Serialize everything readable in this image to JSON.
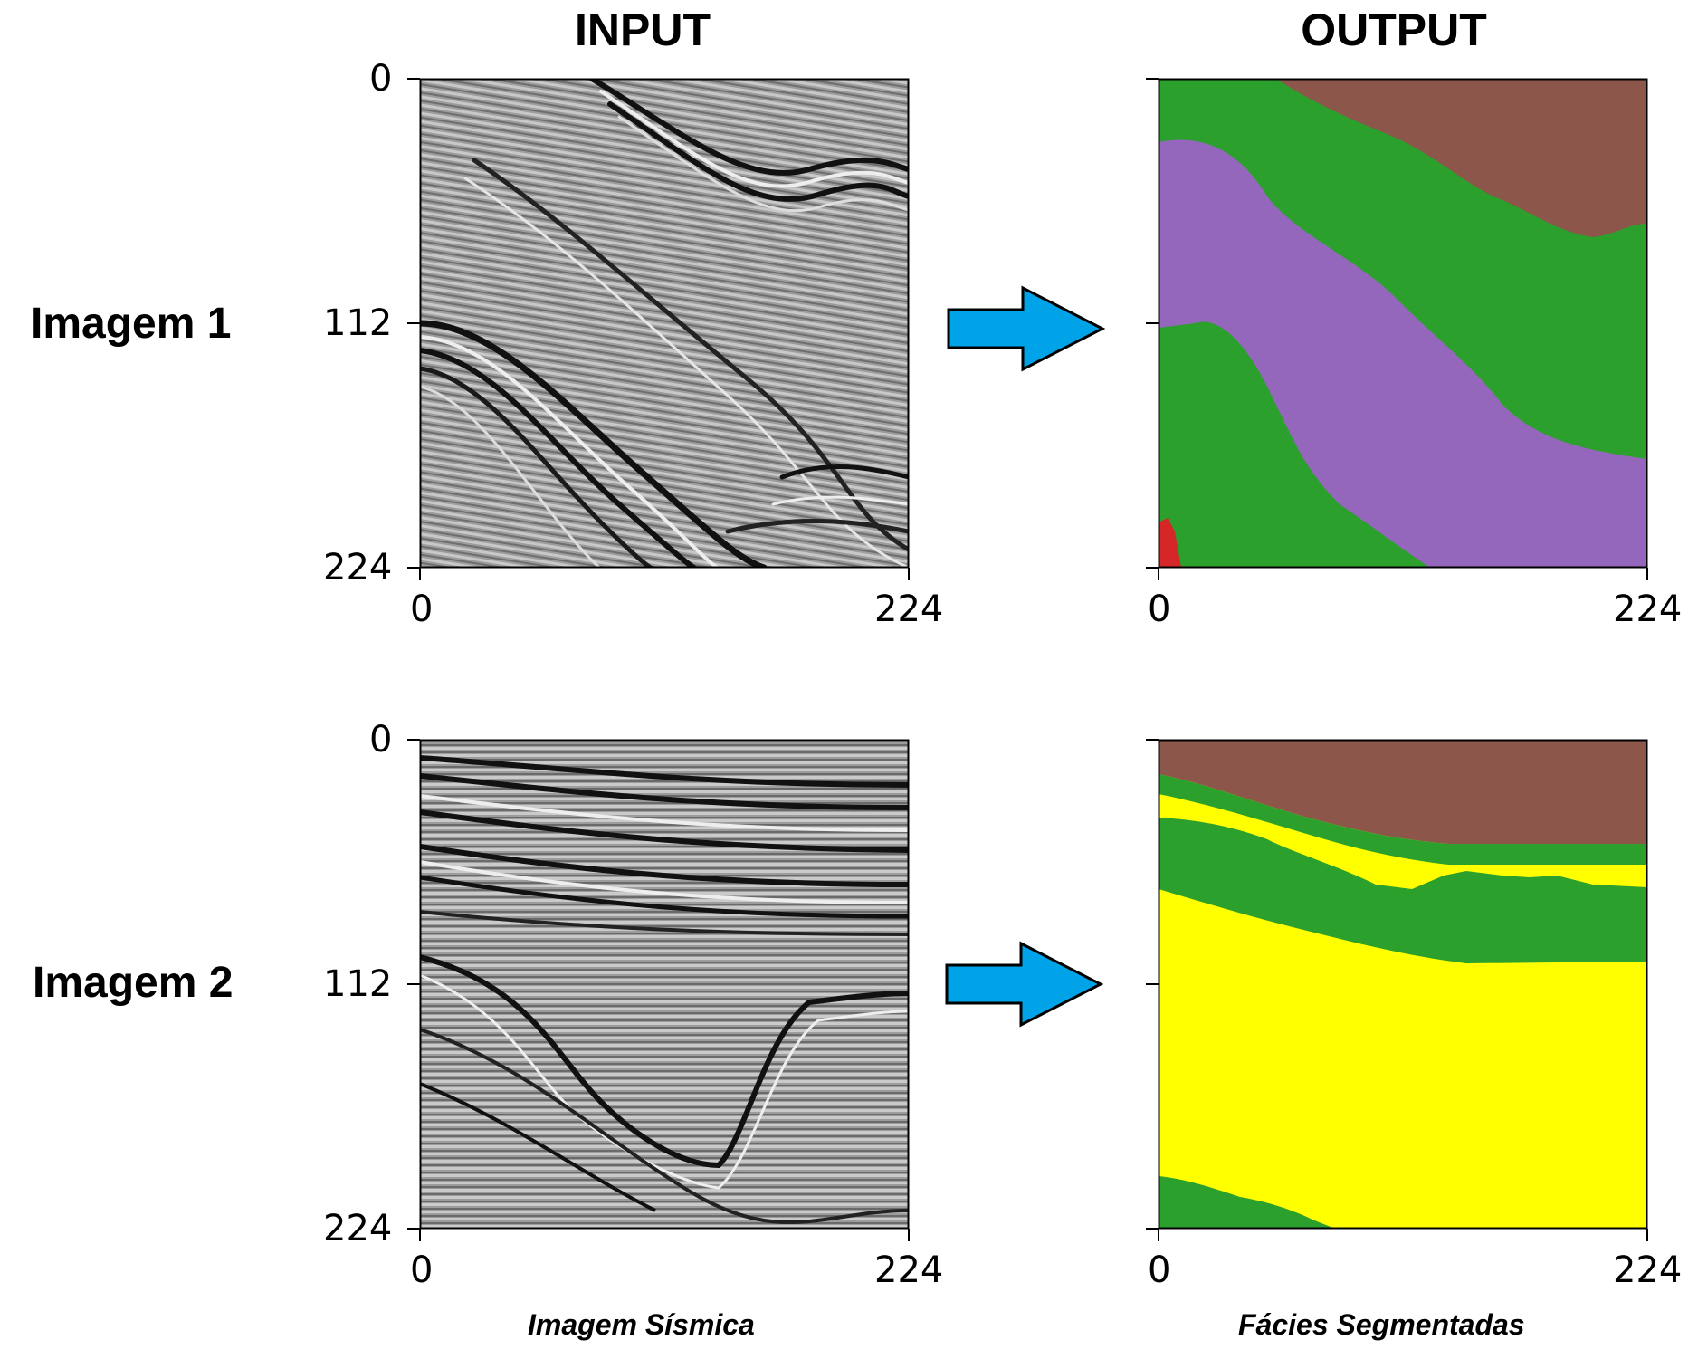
{
  "headers": {
    "input": "INPUT",
    "output": "OUTPUT"
  },
  "rows": [
    {
      "label": "Imagem 1",
      "y_ticks": [
        "0",
        "112",
        "224"
      ],
      "x_ticks": [
        "0",
        "224"
      ]
    },
    {
      "label": "Imagem 2",
      "y_ticks": [
        "0",
        "112",
        "224"
      ],
      "x_ticks": [
        "0",
        "224"
      ]
    }
  ],
  "footers": {
    "input": "Imagem Sísmica",
    "output": "Fácies Segmentadas"
  },
  "colors": {
    "brown": "#8c564b",
    "green": "#2ca02c",
    "purple": "#9467bd",
    "red": "#d62728",
    "yellow": "#ffff00",
    "arrow": "#00a2e8",
    "seismic_bg": "#9a9a9a"
  }
}
